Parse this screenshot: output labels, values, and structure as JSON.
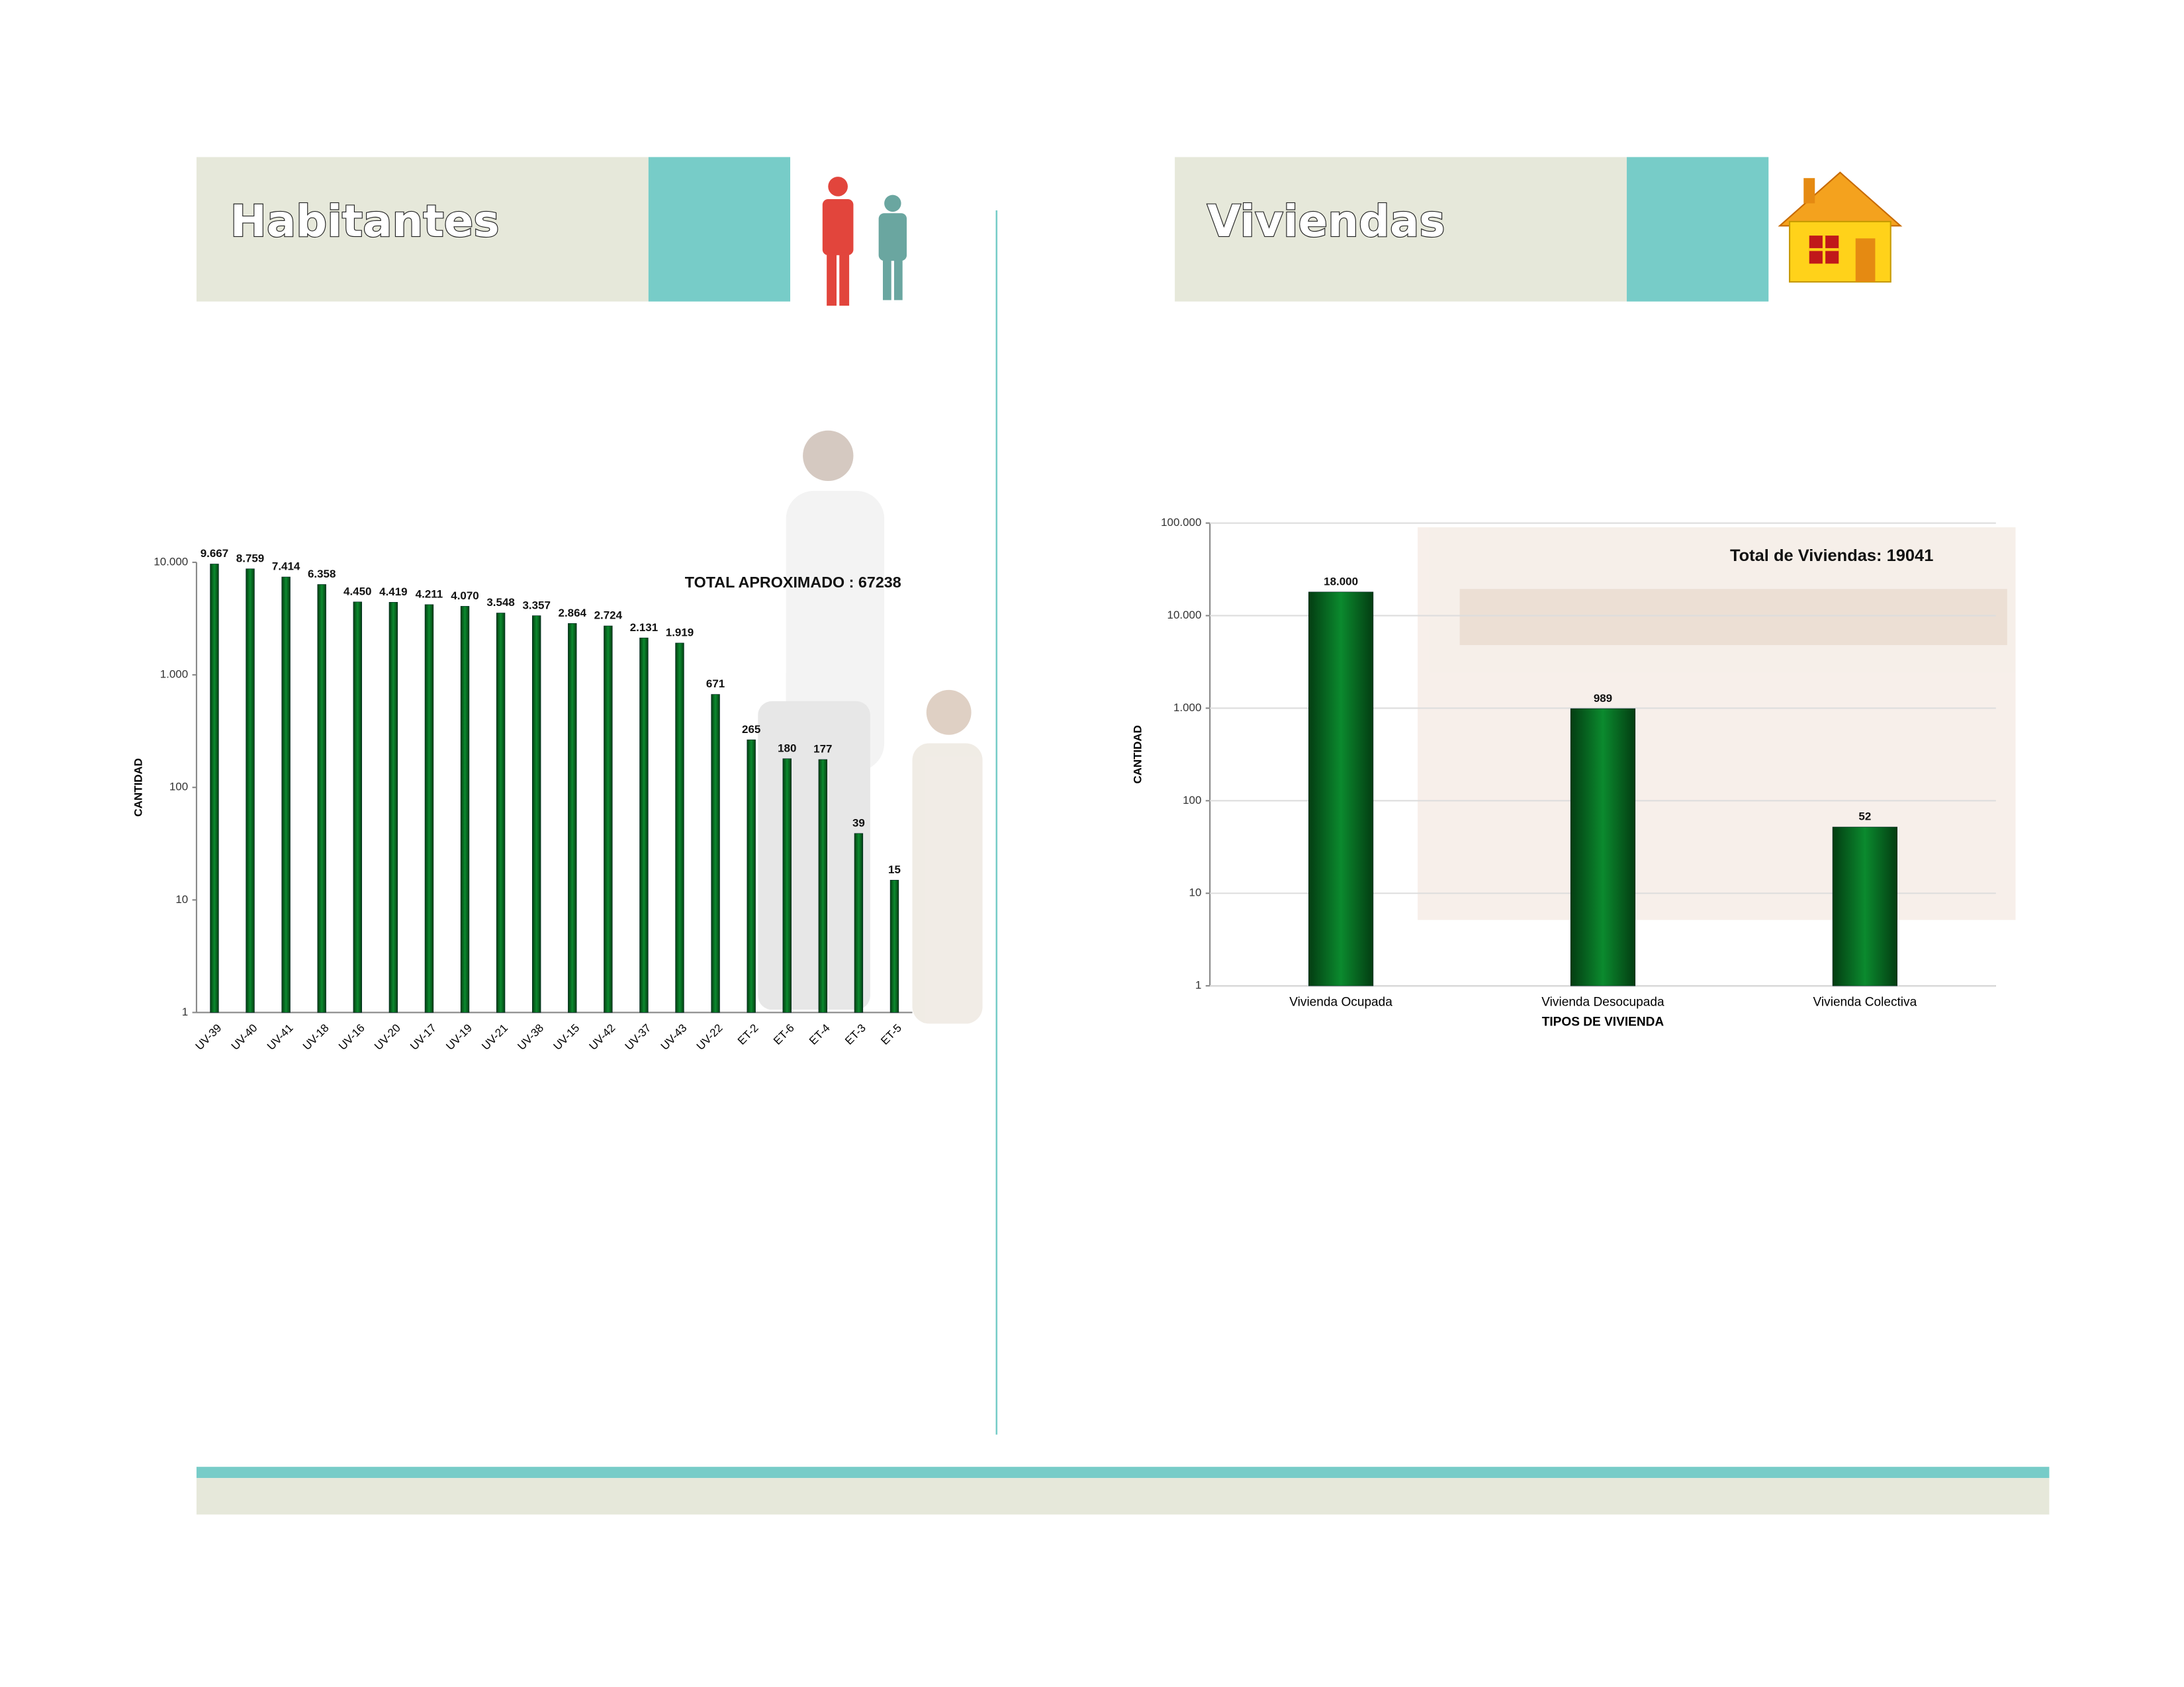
{
  "chart_data": [
    {
      "type": "bar",
      "title": "Habitantes",
      "annotation": "TOTAL APROXIMADO : 67238",
      "y_label": "CANTIDAD",
      "categories": [
        "UV-39",
        "UV-40",
        "UV-41",
        "UV-18",
        "UV-16",
        "UV-20",
        "UV-17",
        "UV-19",
        "UV-21",
        "UV-38",
        "UV-15",
        "UV-42",
        "UV-37",
        "UV-43",
        "UV-22",
        "ET-2",
        "ET-6",
        "ET-4",
        "ET-3",
        "ET-5"
      ],
      "values": [
        9667,
        8759,
        7414,
        6358,
        4450,
        4419,
        4211,
        4070,
        3548,
        3357,
        2864,
        2724,
        2131,
        1919,
        671,
        265,
        180,
        177,
        39,
        15
      ],
      "value_labels": [
        "9.667",
        "8.759",
        "7.414",
        "6.358",
        "4.450",
        "4.419",
        "4.211",
        "4.070",
        "3.548",
        "3.357",
        "2.864",
        "2.724",
        "2.131",
        "1.919",
        "671",
        "265",
        "180",
        "177",
        "39",
        "15"
      ],
      "color": "#0b8a2e",
      "log_scale": true,
      "grid": false,
      "ylim": [
        1,
        10000
      ],
      "yticks": [
        1,
        10,
        100,
        {
          "value": 1000,
          "label": "1.000"
        },
        {
          "value": 10000,
          "label": "10.000"
        }
      ]
    },
    {
      "type": "bar",
      "title": "Viviendas",
      "annotation": "Total de Viviendas: 19041",
      "y_label": "CANTIDAD",
      "x_label": "TIPOS DE VIVIENDA",
      "categories": [
        "Vivienda Ocupada",
        "Vivienda Desocupada",
        "Vivienda Colectiva"
      ],
      "values": [
        18000,
        989,
        52
      ],
      "value_labels": [
        "18.000",
        "989",
        "52"
      ],
      "color": "#0b8a2e",
      "log_scale": true,
      "grid": true,
      "ylim": [
        1,
        100000
      ],
      "yticks": [
        1,
        10,
        100,
        {
          "value": 1000,
          "label": "1.000"
        },
        {
          "value": 10000,
          "label": "10.000"
        },
        {
          "value": 100000,
          "label": "100.000"
        }
      ]
    }
  ]
}
